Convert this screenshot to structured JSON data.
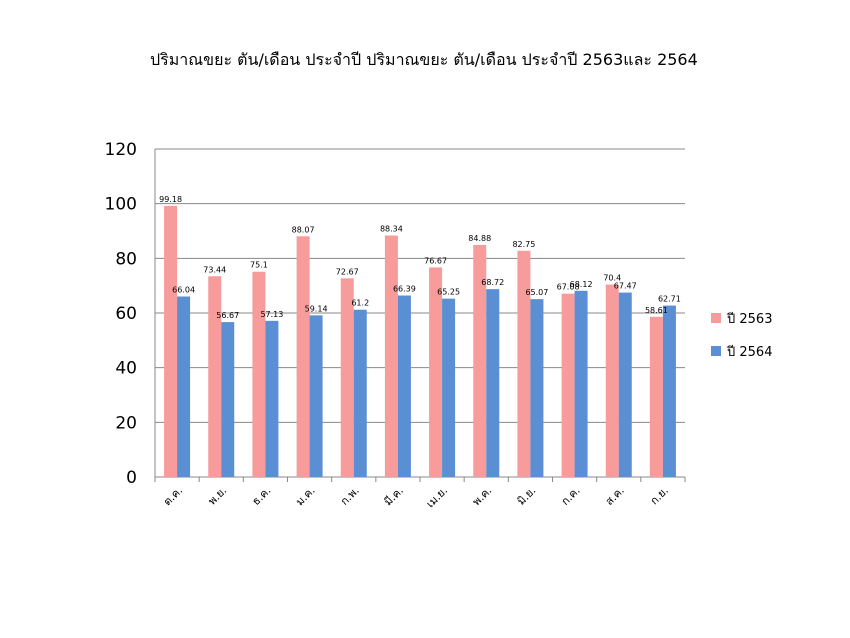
{
  "chart_data": {
    "type": "bar",
    "title": "ปริมาณขยะ ตัน/เดือน ประจำปี ปริมาณขยะ ตัน/เดือน ประจำปี 2563และ 2564",
    "categories": [
      "ต.ค.",
      "พ.ย.",
      "ธ.ค.",
      "ม.ค.",
      "ก.พ.",
      "มี.ค.",
      "เม.ย.",
      "พ.ค.",
      "มิ.ย.",
      "ก.ค.",
      "ส.ค.",
      "ก.ย."
    ],
    "series": [
      {
        "name": "ปี 2563",
        "color": "#f79b9b",
        "values": [
          99.18,
          73.44,
          75.1,
          88.07,
          72.67,
          88.34,
          76.67,
          84.88,
          82.75,
          67.08,
          70.4,
          58.61
        ]
      },
      {
        "name": "ปี 2564",
        "color": "#5b8fd3",
        "values": [
          66.04,
          56.67,
          57.13,
          59.14,
          61.2,
          66.39,
          65.25,
          68.72,
          65.07,
          68.12,
          67.47,
          62.71
        ]
      }
    ],
    "ylim": [
      0,
      120
    ],
    "yticks": [
      0,
      20,
      40,
      60,
      80,
      100,
      120
    ],
    "grid": true,
    "legend": "right",
    "xlabel": "",
    "ylabel": ""
  }
}
